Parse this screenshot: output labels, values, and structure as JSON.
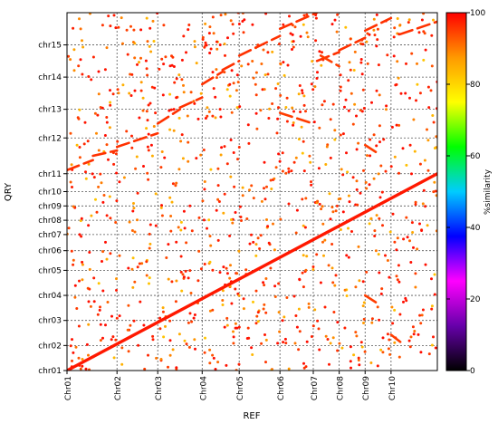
{
  "chart_data": {
    "type": "scatter",
    "subtype": "dotplot",
    "xlabel": "REF",
    "ylabel": "QRY",
    "colorbar_label": "%similarity",
    "color_range": [
      0,
      100
    ],
    "colorbar_ticks": [
      0,
      20,
      40,
      60,
      80,
      100
    ],
    "colorbar_stops": [
      "#000000",
      "#6600aa",
      "#ff00ff",
      "#0000ff",
      "#00ccff",
      "#00ff00",
      "#ffff00",
      "#ff9900",
      "#ff0000"
    ],
    "grid": true,
    "ref_chromosomes": [
      {
        "name": "Chr01",
        "start": 0.0,
        "end": 13.5
      },
      {
        "name": "Chr02",
        "start": 13.5,
        "end": 24.5
      },
      {
        "name": "Chr03",
        "start": 24.5,
        "end": 36.5
      },
      {
        "name": "Chr04",
        "start": 36.5,
        "end": 46.5
      },
      {
        "name": "Chr05",
        "start": 46.5,
        "end": 57.5
      },
      {
        "name": "Chr06",
        "start": 57.5,
        "end": 66.5
      },
      {
        "name": "Chr07",
        "start": 66.5,
        "end": 73.5
      },
      {
        "name": "Chr08",
        "start": 73.5,
        "end": 80.5
      },
      {
        "name": "Chr09",
        "start": 80.5,
        "end": 87.5
      },
      {
        "name": "Chr10",
        "start": 87.5,
        "end": 100.0
      }
    ],
    "qry_chromosomes": [
      {
        "name": "chr01",
        "start": 0.0,
        "end": 7.0
      },
      {
        "name": "chr02",
        "start": 7.0,
        "end": 14.0
      },
      {
        "name": "chr03",
        "start": 14.0,
        "end": 21.0
      },
      {
        "name": "chr04",
        "start": 21.0,
        "end": 28.0
      },
      {
        "name": "chr05",
        "start": 28.0,
        "end": 33.5
      },
      {
        "name": "chr06",
        "start": 33.5,
        "end": 38.0
      },
      {
        "name": "chr07",
        "start": 38.0,
        "end": 42.0
      },
      {
        "name": "chr08",
        "start": 42.0,
        "end": 46.0
      },
      {
        "name": "chr09",
        "start": 46.0,
        "end": 50.0
      },
      {
        "name": "chr10",
        "start": 50.0,
        "end": 55.0
      },
      {
        "name": "chr11",
        "start": 55.0,
        "end": 65.0
      },
      {
        "name": "chr12",
        "start": 65.0,
        "end": 73.0
      },
      {
        "name": "chr13",
        "start": 73.0,
        "end": 82.0
      },
      {
        "name": "chr14",
        "start": 82.0,
        "end": 91.0
      },
      {
        "name": "chr15",
        "start": 91.0,
        "end": 99.5
      }
    ],
    "xlim": [
      0,
      100
    ],
    "ylim": [
      0,
      100
    ],
    "alignment_segments": [
      {
        "x": [
          0.0,
          100.0
        ],
        "y": [
          0.0,
          55.0
        ],
        "similarity": 98
      },
      {
        "x": [
          0.0,
          7.0
        ],
        "y": [
          56.0,
          58.8
        ],
        "similarity": 96
      },
      {
        "x": [
          7.0,
          13.5
        ],
        "y": [
          60.0,
          61.5
        ],
        "similarity": 96
      },
      {
        "x": [
          13.5,
          24.5
        ],
        "y": [
          62.5,
          66.3
        ],
        "similarity": 96
      },
      {
        "x": [
          24.5,
          30.5
        ],
        "y": [
          69.0,
          73.0
        ],
        "similarity": 96
      },
      {
        "x": [
          30.5,
          36.5
        ],
        "y": [
          73.5,
          76.3
        ],
        "similarity": 96
      },
      {
        "x": [
          36.5,
          42.0
        ],
        "y": [
          80.0,
          83.5
        ],
        "similarity": 96
      },
      {
        "x": [
          42.0,
          46.5
        ],
        "y": [
          84.0,
          86.5
        ],
        "similarity": 96
      },
      {
        "x": [
          46.5,
          57.5
        ],
        "y": [
          88.0,
          93.5
        ],
        "similarity": 96
      },
      {
        "x": [
          57.5,
          67.5
        ],
        "y": [
          95.5,
          100.0
        ],
        "similarity": 96
      },
      {
        "x": [
          67.5,
          73.5
        ],
        "y": [
          86.5,
          89.0
        ],
        "similarity": 96
      },
      {
        "x": [
          73.5,
          80.5
        ],
        "y": [
          89.5,
          93.0
        ],
        "similarity": 96
      },
      {
        "x": [
          80.5,
          87.5
        ],
        "y": [
          95.0,
          98.5
        ],
        "similarity": 96
      },
      {
        "x": [
          90.0,
          100.0
        ],
        "y": [
          94.0,
          97.5
        ],
        "similarity": 96
      },
      {
        "x": [
          57.5,
          66.5
        ],
        "y": [
          72.0,
          69.0
        ],
        "similarity": 95
      },
      {
        "x": [
          68.5,
          73.5
        ],
        "y": [
          88.0,
          85.0
        ],
        "similarity": 95
      },
      {
        "x": [
          80.5,
          83.5
        ],
        "y": [
          63.0,
          61.0
        ],
        "similarity": 95
      },
      {
        "x": [
          80.5,
          83.5
        ],
        "y": [
          21.0,
          19.0
        ],
        "similarity": 95
      },
      {
        "x": [
          87.5,
          90.0
        ],
        "y": [
          10.0,
          8.0
        ],
        "similarity": 95
      }
    ],
    "scatter_points": {
      "count": 1050,
      "similarity_range": [
        82,
        99
      ]
    }
  }
}
